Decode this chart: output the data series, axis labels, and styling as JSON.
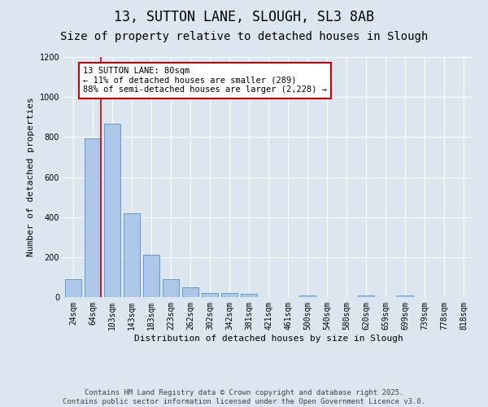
{
  "title1": "13, SUTTON LANE, SLOUGH, SL3 8AB",
  "title2": "Size of property relative to detached houses in Slough",
  "xlabel": "Distribution of detached houses by size in Slough",
  "ylabel": "Number of detached properties",
  "categories": [
    "24sqm",
    "64sqm",
    "103sqm",
    "143sqm",
    "183sqm",
    "223sqm",
    "262sqm",
    "302sqm",
    "342sqm",
    "381sqm",
    "421sqm",
    "461sqm",
    "500sqm",
    "540sqm",
    "580sqm",
    "620sqm",
    "659sqm",
    "699sqm",
    "739sqm",
    "778sqm",
    "818sqm"
  ],
  "values": [
    90,
    795,
    865,
    420,
    210,
    90,
    50,
    22,
    22,
    15,
    0,
    0,
    8,
    0,
    0,
    10,
    0,
    10,
    0,
    0,
    0
  ],
  "bar_color": "#aec6e8",
  "bar_edge_color": "#5b9bd5",
  "vline_x_idx": 1,
  "vline_color": "#cc0000",
  "annotation_text": "13 SUTTON LANE: 80sqm\n← 11% of detached houses are smaller (289)\n88% of semi-detached houses are larger (2,228) →",
  "annotation_box_color": "#ffffff",
  "annotation_box_edge_color": "#cc0000",
  "ylim": [
    0,
    1200
  ],
  "yticks": [
    0,
    200,
    400,
    600,
    800,
    1000,
    1200
  ],
  "fig_bg_color": "#dce6f1",
  "plot_bg_color": "#dce6f1",
  "footer_line1": "Contains HM Land Registry data © Crown copyright and database right 2025.",
  "footer_line2": "Contains public sector information licensed under the Open Government Licence v3.0.",
  "title_fontsize": 12,
  "subtitle_fontsize": 10,
  "axis_label_fontsize": 8,
  "tick_fontsize": 7,
  "annotation_fontsize": 7.5,
  "footer_fontsize": 6.5
}
